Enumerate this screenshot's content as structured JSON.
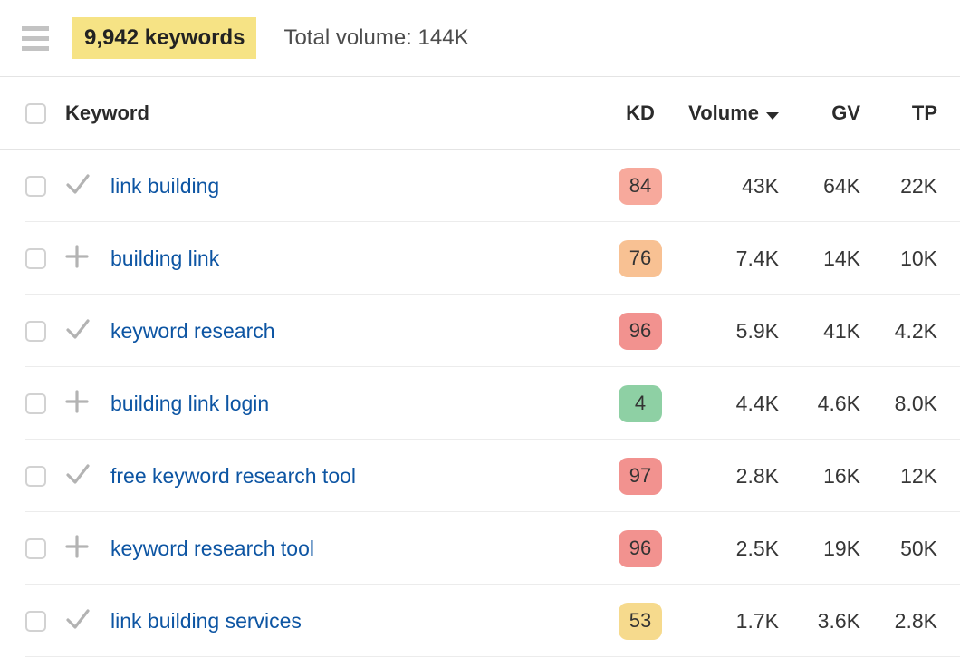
{
  "header": {
    "keywords_count": "9,942 keywords",
    "total_volume": "Total volume: 144K"
  },
  "colors": {
    "highlight_yellow": "#f6e385",
    "keyword_link_blue": "#0d55a3",
    "kd_red": "#f2928f",
    "kd_salmon": "#f7a99c",
    "kd_orange": "#f8c193",
    "kd_yellow": "#f6da8d",
    "kd_green": "#8ed0a4"
  },
  "table": {
    "columns": {
      "keyword": "Keyword",
      "kd": "KD",
      "volume": "Volume",
      "gv": "GV",
      "tp": "TP"
    },
    "sort": {
      "column": "Volume",
      "direction": "desc"
    },
    "rows": [
      {
        "keyword": "link building",
        "icon": "check",
        "kd": "84",
        "kd_color": "#f7a99c",
        "volume": "43K",
        "gv": "64K",
        "tp": "22K"
      },
      {
        "keyword": "building link",
        "icon": "plus",
        "kd": "76",
        "kd_color": "#f8c193",
        "volume": "7.4K",
        "gv": "14K",
        "tp": "10K"
      },
      {
        "keyword": "keyword research",
        "icon": "check",
        "kd": "96",
        "kd_color": "#f2928f",
        "volume": "5.9K",
        "gv": "41K",
        "tp": "4.2K"
      },
      {
        "keyword": "building link login",
        "icon": "plus",
        "kd": "4",
        "kd_color": "#8ed0a4",
        "volume": "4.4K",
        "gv": "4.6K",
        "tp": "8.0K"
      },
      {
        "keyword": "free keyword research tool",
        "icon": "check",
        "kd": "97",
        "kd_color": "#f2928f",
        "volume": "2.8K",
        "gv": "16K",
        "tp": "12K"
      },
      {
        "keyword": "keyword research tool",
        "icon": "plus",
        "kd": "96",
        "kd_color": "#f2928f",
        "volume": "2.5K",
        "gv": "19K",
        "tp": "50K"
      },
      {
        "keyword": "link building services",
        "icon": "check",
        "kd": "53",
        "kd_color": "#f6da8d",
        "volume": "1.7K",
        "gv": "3.6K",
        "tp": "2.8K"
      }
    ]
  }
}
